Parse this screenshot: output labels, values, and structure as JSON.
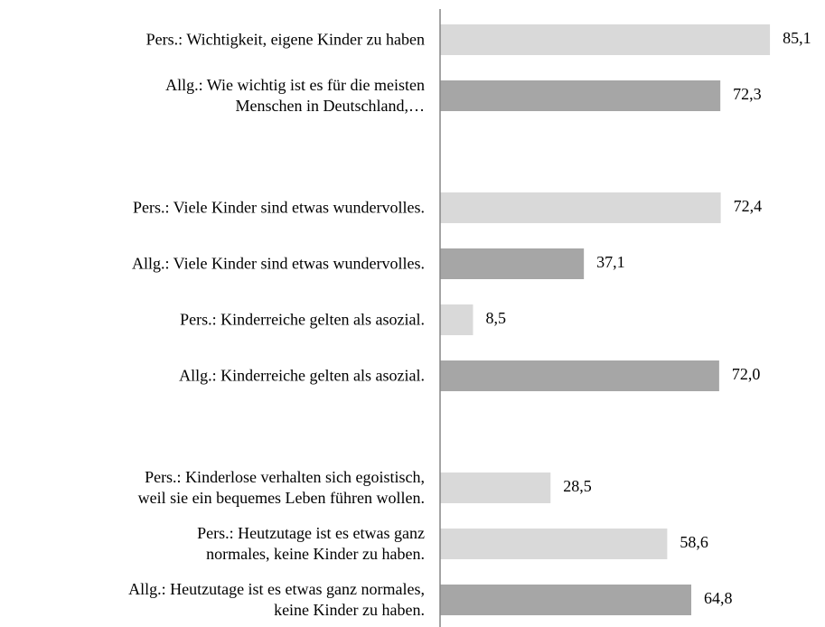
{
  "chart_data": {
    "type": "barh",
    "categories": [
      "Pers.: Wichtigkeit, eigene Kinder zu haben",
      "Allg.: Wie wichtig ist es für die meisten\nMenschen in Deutschland,…",
      null,
      "Pers.: Viele Kinder sind etwas wundervolles.",
      "Allg.: Viele Kinder sind etwas wundervolles.",
      "Pers.: Kinderreiche gelten als asozial.",
      "Allg.:  Kinderreiche gelten als asozial.",
      null,
      "Pers.:  Kinderlose verhalten sich egoistisch,\nweil sie ein bequemes Leben führen wollen.",
      "Pers.: Heutzutage ist es etwas ganz\nnormales, keine Kinder zu haben.",
      "Allg.: Heutzutage ist es etwas ganz normales,\nkeine Kinder zu haben."
    ],
    "values": [
      85.1,
      72.3,
      null,
      72.4,
      37.1,
      8.5,
      72.0,
      null,
      28.5,
      58.6,
      64.8
    ],
    "value_labels": [
      "85,1",
      "72,3",
      null,
      "72,4",
      "37,1",
      "8,5",
      "72,0",
      null,
      "28,5",
      "58,6",
      "64,8"
    ],
    "colors": [
      "#d9d9d9",
      "#a6a6a6",
      null,
      "#d9d9d9",
      "#a6a6a6",
      "#d9d9d9",
      "#a6a6a6",
      null,
      "#d9d9d9",
      "#d9d9d9",
      "#a6a6a6"
    ],
    "xlim": [
      0,
      100
    ]
  }
}
